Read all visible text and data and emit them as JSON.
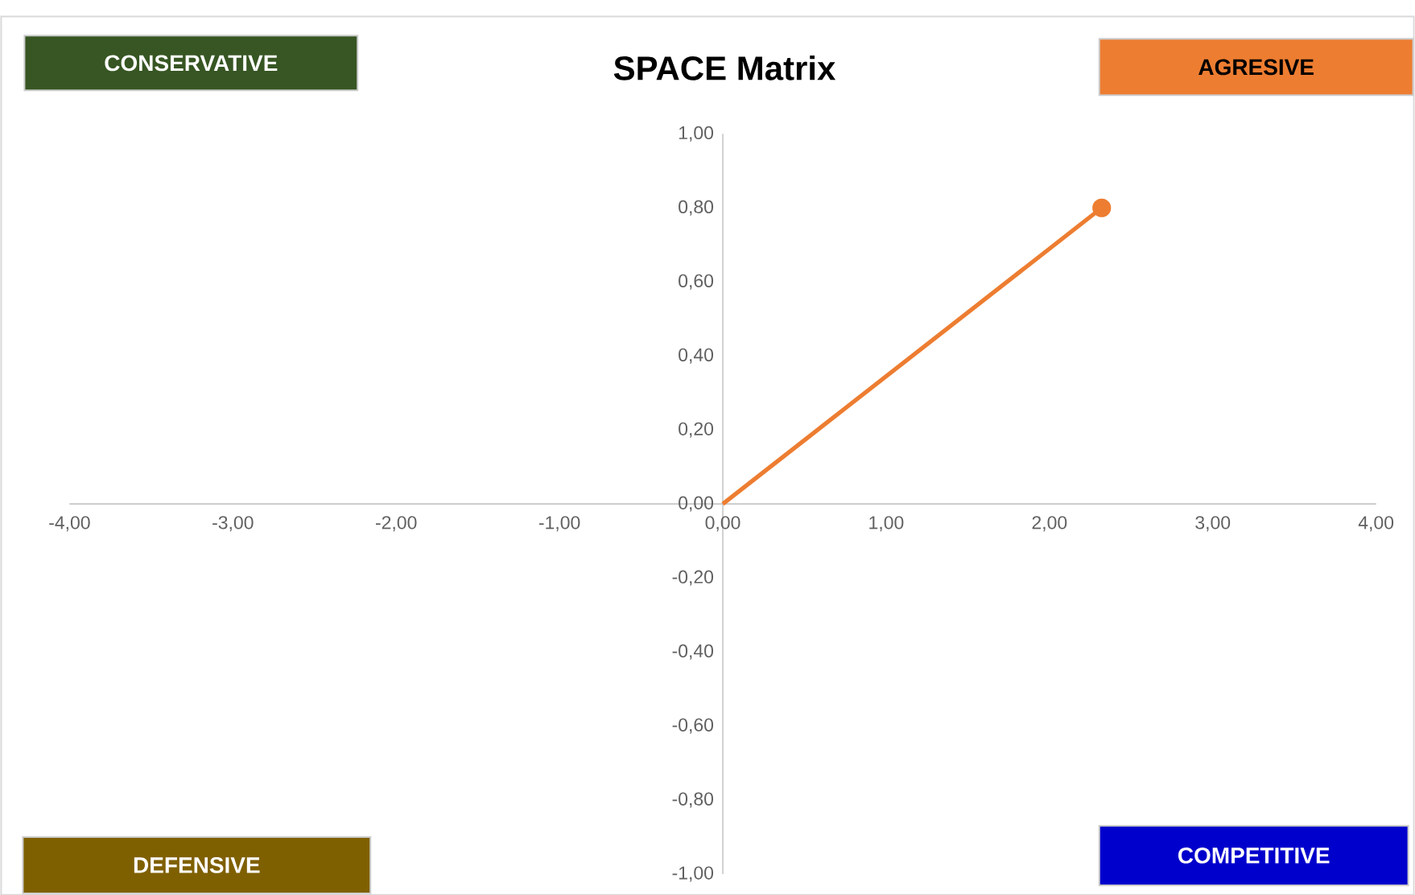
{
  "chart_data": {
    "type": "line",
    "title": "SPACE Matrix",
    "x": [
      0,
      2.32
    ],
    "series": [
      {
        "color": "#ed7d31",
        "values": [
          0,
          0.8
        ]
      }
    ],
    "marker": "circle",
    "xlim": [
      -4,
      4
    ],
    "ylim": [
      -1,
      1
    ],
    "xticks": [
      {
        "value": -4,
        "label": "-4,00"
      },
      {
        "value": -3,
        "label": "-3,00"
      },
      {
        "value": -2,
        "label": "-2,00"
      },
      {
        "value": -1,
        "label": "-1,00"
      },
      {
        "value": 0,
        "label": "0,00"
      },
      {
        "value": 1,
        "label": "1,00"
      },
      {
        "value": 2,
        "label": "2,00"
      },
      {
        "value": 3,
        "label": "3,00"
      },
      {
        "value": 4,
        "label": "4,00"
      }
    ],
    "yticks": [
      {
        "value": -1,
        "label": "-1,00"
      },
      {
        "value": -0.8,
        "label": "-0,80"
      },
      {
        "value": -0.6,
        "label": "-0,60"
      },
      {
        "value": -0.4,
        "label": "-0,40"
      },
      {
        "value": -0.2,
        "label": "-0,20"
      },
      {
        "value": 0,
        "label": "0,00"
      },
      {
        "value": 0.2,
        "label": "0,20"
      },
      {
        "value": 0.4,
        "label": "0,40"
      },
      {
        "value": 0.6,
        "label": "0,60"
      },
      {
        "value": 0.8,
        "label": "0,80"
      },
      {
        "value": 1,
        "label": "1,00"
      }
    ],
    "grid": false,
    "annotations": [
      "CONSERVATIVE",
      "AGRESIVE",
      "DEFENSIVE",
      "COMPETITIVE"
    ]
  }
}
